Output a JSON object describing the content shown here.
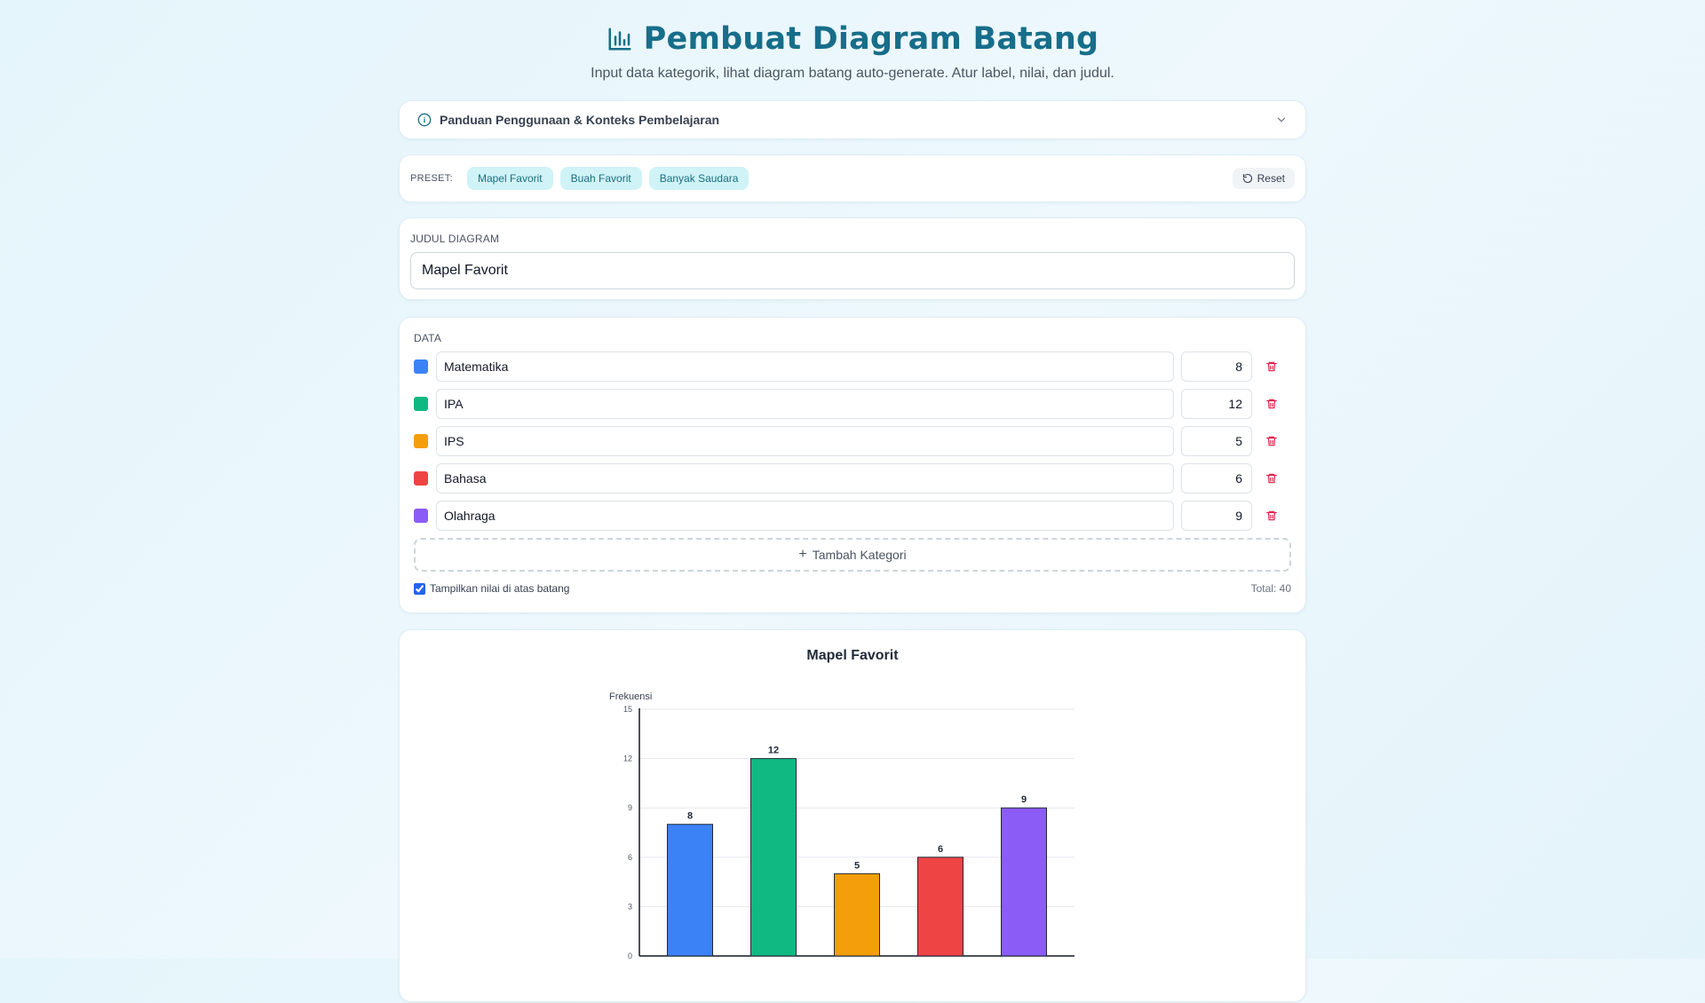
{
  "header": {
    "title": "Pembuat Diagram Batang",
    "subtitle": "Input data kategorik, lihat diagram batang auto-generate. Atur label, nilai, dan judul."
  },
  "guide": {
    "label": "Panduan Penggunaan & Konteks Pembelajaran"
  },
  "presets": {
    "label": "PRESET:",
    "chips": [
      "Mapel Favorit",
      "Buah Favorit",
      "Banyak Saudara"
    ],
    "reset_label": "Reset"
  },
  "title_section": {
    "label": "JUDUL DIAGRAM",
    "value": "Mapel Favorit"
  },
  "data_section": {
    "label": "DATA",
    "rows": [
      {
        "name": "Matematika",
        "value": "8",
        "color": "#3b82f6"
      },
      {
        "name": "IPA",
        "value": "12",
        "color": "#10b981"
      },
      {
        "name": "IPS",
        "value": "5",
        "color": "#f59e0b"
      },
      {
        "name": "Bahasa",
        "value": "6",
        "color": "#ef4444"
      },
      {
        "name": "Olahraga",
        "value": "9",
        "color": "#8b5cf6"
      }
    ],
    "add_label": "Tambah Kategori",
    "show_values_label": "Tampilkan nilai di atas batang",
    "show_values_checked": true,
    "total_label": "Total: 40"
  },
  "chart_data": {
    "type": "bar",
    "title": "Mapel Favorit",
    "ylabel": "Frekuensi",
    "xlabel": "",
    "categories": [
      "Matematika",
      "IPA",
      "IPS",
      "Bahasa",
      "Olahraga"
    ],
    "values": [
      8,
      12,
      5,
      6,
      9
    ],
    "colors": [
      "#3b82f6",
      "#10b981",
      "#f59e0b",
      "#ef4444",
      "#8b5cf6"
    ],
    "yticks": [
      0,
      3,
      6,
      9,
      12,
      15
    ],
    "ylim": [
      0,
      15
    ],
    "grid": true,
    "show_values": true
  }
}
